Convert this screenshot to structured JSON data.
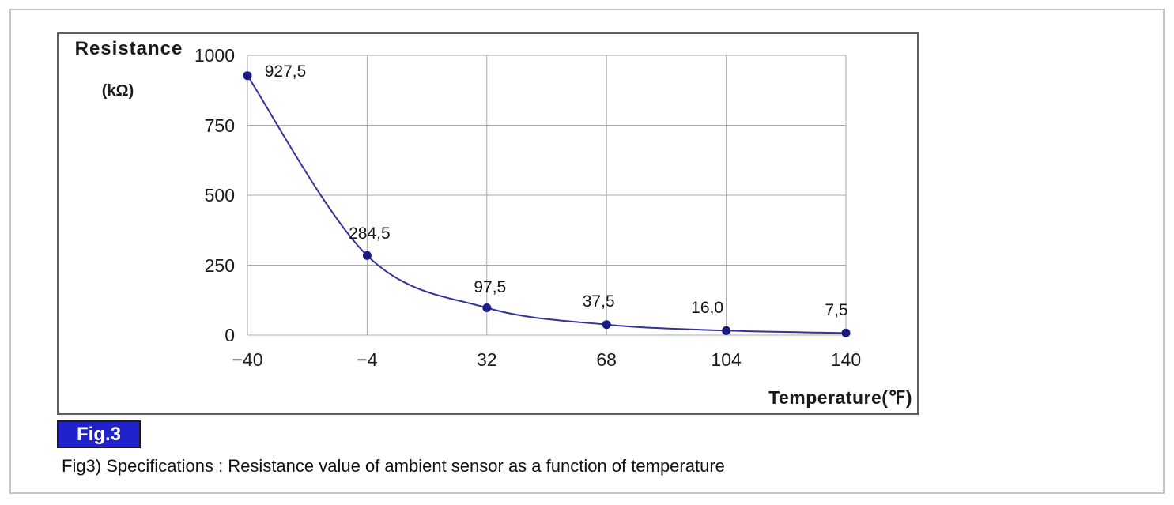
{
  "page": {
    "fig_badge": "Fig.3",
    "caption": "Fig3) Specifications : Resistance value of ambient sensor as a function of temperature"
  },
  "chart_data": {
    "type": "line",
    "title": "",
    "x": [
      -40,
      -4,
      32,
      68,
      104,
      140
    ],
    "values": [
      927.5,
      284.5,
      97.5,
      37.5,
      16.0,
      7.5
    ],
    "point_labels": [
      "927,5",
      "284,5",
      "97,5",
      "37,5",
      "16,0",
      "7,5"
    ],
    "x_tick_labels": [
      "−40",
      "−4",
      "32",
      "68",
      "104",
      "140"
    ],
    "y_ticks": [
      0,
      250,
      500,
      750,
      1000
    ],
    "y_tick_labels": [
      "0",
      "250",
      "500",
      "750",
      "1000"
    ],
    "ylabel_line1": "Resistance",
    "ylabel_line2": "(kΩ)",
    "xlabel": "Temperature(℉)",
    "xlim": [
      -40,
      140
    ],
    "ylim": [
      0,
      1000
    ],
    "grid": true,
    "legend": "none",
    "colors": {
      "line": "#32329b",
      "marker": "#1b1b85",
      "grid": "#a9a9a9",
      "badge_bg": "#2222cc",
      "badge_text": "#ffffff"
    }
  }
}
